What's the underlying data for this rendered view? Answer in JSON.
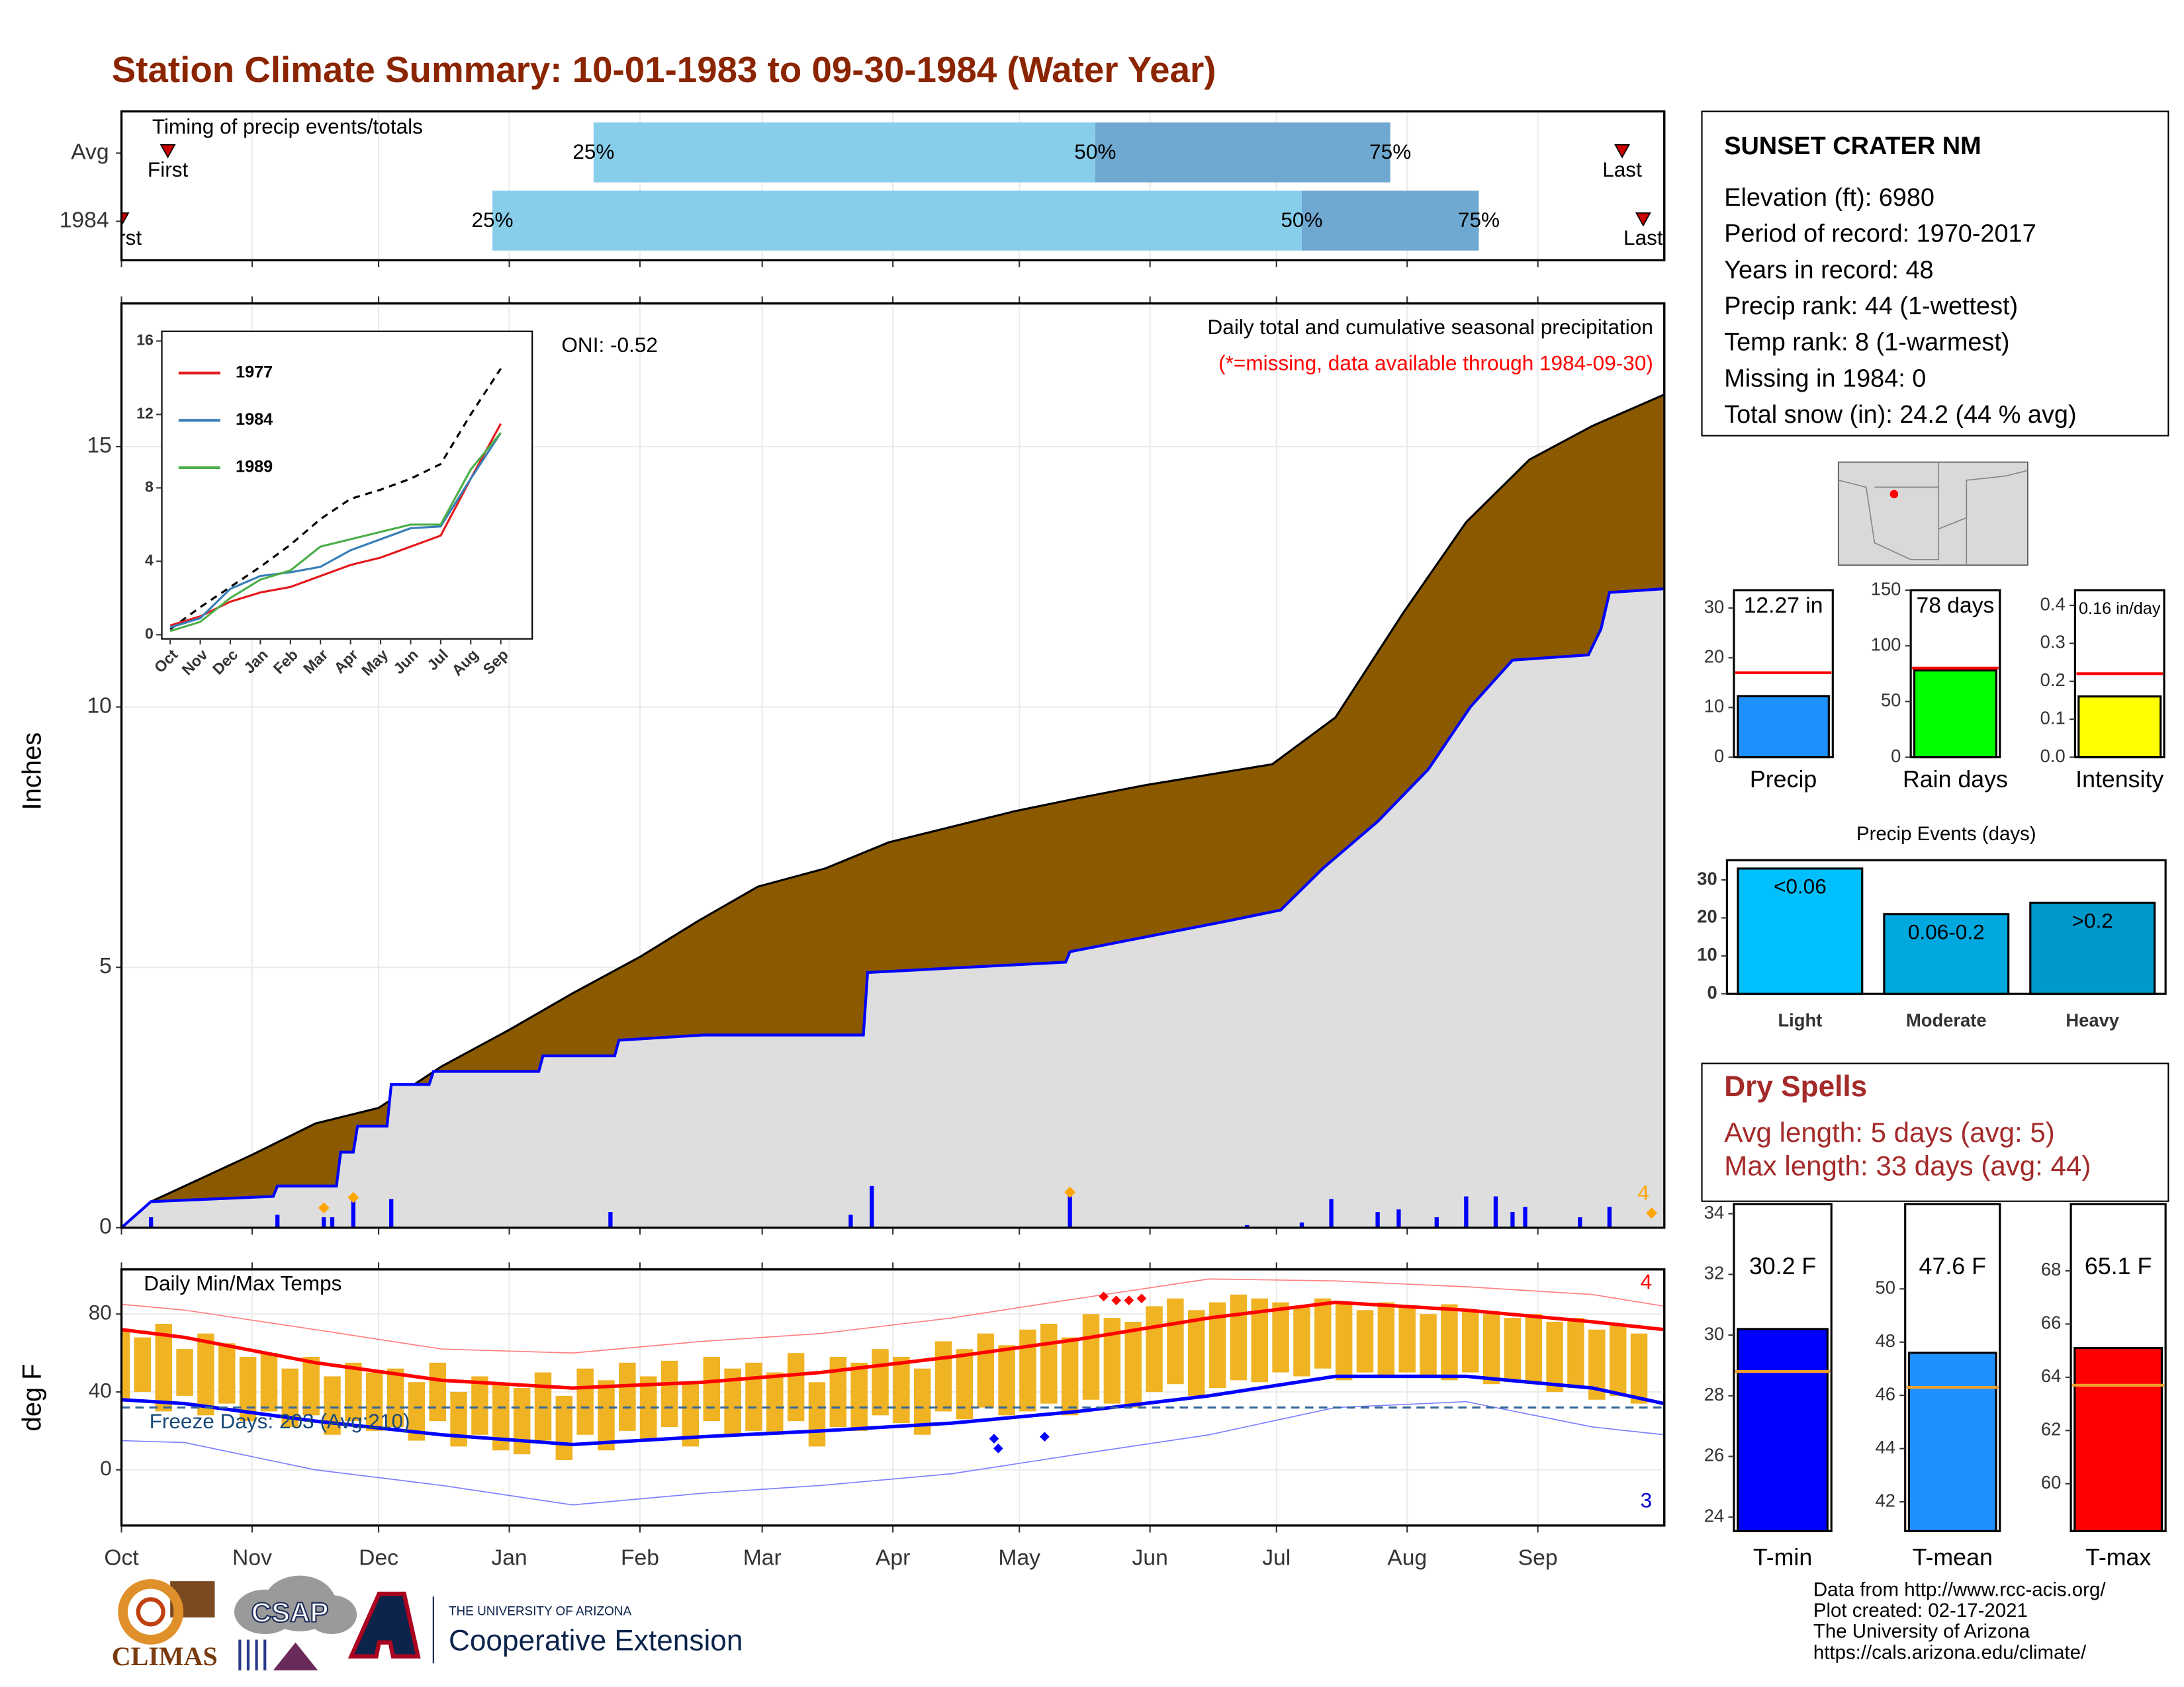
{
  "title": "Station Climate Summary: 10-01-1983 to 09-30-1984 (Water Year)",
  "station": {
    "name": "SUNSET CRATER NM",
    "lines": [
      "Elevation (ft): 6980",
      "Period of record: 1970-2017",
      "Years in record: 48",
      "Precip rank: 44 (1-wettest)",
      "Temp rank: 8 (1-warmest)",
      "Missing in 1984: 0",
      "Total snow (in): 24.2 (44 % avg)"
    ]
  },
  "dry_spells": {
    "title": "Dry Spells",
    "lines": [
      "Avg length: 5 days (avg: 5)",
      "Max length: 33 days (avg: 44)"
    ]
  },
  "footer": [
    "Data from http://www.rcc-acis.org/",
    "Plot created: 02-17-2021",
    "The University of Arizona",
    "https://cals.arizona.edu/climate/"
  ],
  "logos": {
    "climas": "CLIMAS",
    "csap": "CSAP",
    "university": "THE UNIVERSITY OF ARIZONA",
    "extension": "Cooperative Extension"
  },
  "chart_data": [
    {
      "type": "timing",
      "title": "Timing of precip events/totals",
      "xlim": [
        0,
        366
      ],
      "xticks": [
        0,
        31,
        61,
        92,
        123,
        152,
        183,
        213,
        244,
        274,
        305,
        336
      ],
      "marker_labels": {
        "first": "First",
        "last": "Last"
      },
      "colors": [
        "#87ceeb",
        "#6fa8d0"
      ],
      "marker_color": "#cc0000",
      "rows": [
        {
          "name": "Avg",
          "first": 11,
          "q25": 112,
          "q50": 231,
          "q75": 301,
          "last": 356,
          "q25_label": "25%",
          "q50_label": "50%",
          "q75_label": "75%"
        },
        {
          "name": "1984",
          "first": 0,
          "q25": 88,
          "q50": 280,
          "q75": 322,
          "last": 361,
          "q25_label": "25%",
          "q50_label": "50%",
          "q75_label": "75%"
        }
      ]
    },
    {
      "type": "cumulative",
      "title": "Daily total and cumulative seasonal precipitation",
      "subtitle": "(*=missing, data available through 1984-09-30)",
      "annotation": "ONI: -0.52",
      "ylabel": "Inches",
      "xlim": [
        0,
        366
      ],
      "xticks": [
        0,
        31,
        61,
        92,
        123,
        152,
        183,
        213,
        244,
        274,
        305,
        336
      ],
      "ylim": [
        0,
        17.75
      ],
      "yticks": [
        0,
        5,
        10,
        15
      ],
      "grid": true,
      "cumulative_avg": {
        "color": "#8b5a00",
        "x": [
          0,
          7,
          31,
          46,
          61,
          76,
          92,
          107,
          123,
          137,
          151,
          167,
          182,
          197,
          212,
          227,
          243,
          258,
          273,
          288,
          304,
          319,
          334,
          349,
          366
        ],
        "values": [
          0,
          0.5,
          1.4,
          2.0,
          2.3,
          3.1,
          3.8,
          4.5,
          5.2,
          5.9,
          6.55,
          6.9,
          7.4,
          7.7,
          8.0,
          8.25,
          8.5,
          8.7,
          8.9,
          9.8,
          11.8,
          13.55,
          14.75,
          15.4,
          16.0
        ]
      },
      "cumulative_1984": {
        "color": "#0000ff",
        "fill": "#dedede",
        "x": [
          0,
          7,
          36,
          37,
          51,
          52,
          55,
          56,
          63,
          64,
          73,
          74,
          99,
          100,
          117,
          118,
          138,
          176,
          177,
          224,
          225,
          263,
          275,
          285,
          298,
          310,
          320,
          330,
          348,
          351,
          353,
          366
        ],
        "values": [
          0,
          0.5,
          0.6,
          0.8,
          0.8,
          1.45,
          1.45,
          1.95,
          1.95,
          2.75,
          2.75,
          3.0,
          3.0,
          3.3,
          3.3,
          3.6,
          3.7,
          3.7,
          4.9,
          5.1,
          5.3,
          5.9,
          6.1,
          6.9,
          7.8,
          8.8,
          10.0,
          10.9,
          11.0,
          11.5,
          12.2,
          12.27
        ]
      },
      "daily": {
        "color": "#0000ff",
        "x": [
          7,
          37,
          48,
          50,
          55,
          64,
          116,
          173,
          178,
          225,
          267,
          280,
          287,
          298,
          303,
          312,
          319,
          326,
          330,
          333,
          346,
          353
        ],
        "values": [
          0.2,
          0.25,
          0.2,
          0.2,
          0.55,
          0.55,
          0.3,
          0.25,
          0.8,
          0.6,
          0.05,
          0.1,
          0.55,
          0.3,
          0.35,
          0.2,
          0.6,
          0.6,
          0.3,
          0.4,
          0.2,
          0.4
        ]
      },
      "record_daily": {
        "color": "#ffa500",
        "x": [
          48,
          55,
          225,
          363
        ],
        "values": [
          0.38,
          0.58,
          0.68,
          0.28
        ]
      },
      "record_count": 4
    },
    {
      "type": "line",
      "categories": [
        "Oct",
        "Nov",
        "Dec",
        "Jan",
        "Feb",
        "Mar",
        "Apr",
        "May",
        "Jun",
        "Jul",
        "Aug",
        "Sep"
      ],
      "ylim": [
        0,
        16
      ],
      "yticks": [
        0,
        4,
        8,
        12,
        16
      ],
      "average": {
        "color": "#000000",
        "values": [
          0.3,
          1.5,
          2.6,
          3.7,
          4.9,
          6.3,
          7.4,
          7.9,
          8.5,
          9.3,
          12.0,
          14.5
        ]
      },
      "series": [
        {
          "name": "1977",
          "color": "#e41a1c",
          "values": [
            0.5,
            1.0,
            1.8,
            2.3,
            2.6,
            3.2,
            3.8,
            4.2,
            4.8,
            5.4,
            8.5,
            11.5
          ]
        },
        {
          "name": "1984",
          "color": "#377eb8",
          "values": [
            0.4,
            0.9,
            2.5,
            3.2,
            3.4,
            3.7,
            4.6,
            5.2,
            5.8,
            5.9,
            8.5,
            11.0
          ]
        },
        {
          "name": "1989",
          "color": "#4daf4a",
          "values": [
            0.2,
            0.7,
            2.0,
            3.0,
            3.5,
            4.8,
            5.2,
            5.6,
            6.0,
            6.0,
            9.0,
            11.0
          ]
        }
      ]
    },
    {
      "type": "bar",
      "categories": [
        "Precip"
      ],
      "values": [
        12.27
      ],
      "value_labels": [
        "12.27 in"
      ],
      "color": "#1e90ff",
      "reference": 17,
      "reference_color": "#ff0000",
      "ylim": [
        0,
        33.6
      ],
      "yticks": [
        0,
        10,
        20,
        30
      ]
    },
    {
      "type": "bar",
      "categories": [
        "Rain days"
      ],
      "values": [
        78
      ],
      "value_labels": [
        "78 days"
      ],
      "color": "#00ff00",
      "reference": 80,
      "reference_color": "#ff0000",
      "ylim": [
        0,
        150
      ],
      "yticks": [
        0,
        50,
        100,
        150
      ]
    },
    {
      "type": "bar",
      "categories": [
        "Intensity"
      ],
      "values": [
        0.16
      ],
      "value_labels": [
        "0.16 in/day"
      ],
      "color": "#ffff00",
      "reference": 0.22,
      "reference_color": "#ff0000",
      "ylim": [
        0,
        0.44
      ],
      "yticks": [
        {
          "value": 0,
          "label": "0.0"
        },
        {
          "value": 0.1,
          "label": "0.1"
        },
        {
          "value": 0.2,
          "label": "0.2"
        },
        {
          "value": 0.3,
          "label": "0.3"
        },
        {
          "value": 0.4,
          "label": "0.4"
        }
      ]
    },
    {
      "type": "bar",
      "title": "Precip Events (days)",
      "categories": [
        "Light",
        "Moderate",
        "Heavy"
      ],
      "values": [
        33,
        21,
        24
      ],
      "bin_labels": [
        "<0.06",
        "0.06-0.2",
        ">0.2"
      ],
      "colors": [
        "#00bfff",
        "#00a8e0",
        "#0099cc"
      ],
      "ylim": [
        0,
        35.2
      ],
      "yticks": [
        0,
        10,
        20,
        30
      ]
    },
    {
      "type": "temp_range",
      "title": "Daily Min/Max Temps",
      "ylabel": "deg F",
      "xlim": [
        0,
        366
      ],
      "xticks": [
        {
          "value": 0,
          "label": "Oct"
        },
        {
          "value": 31,
          "label": "Nov"
        },
        {
          "value": 61,
          "label": "Dec"
        },
        {
          "value": 92,
          "label": "Jan"
        },
        {
          "value": 123,
          "label": "Feb"
        },
        {
          "value": 152,
          "label": "Mar"
        },
        {
          "value": 183,
          "label": "Apr"
        },
        {
          "value": 213,
          "label": "May"
        },
        {
          "value": 244,
          "label": "Jun"
        },
        {
          "value": 274,
          "label": "Jul"
        },
        {
          "value": 305,
          "label": "Aug"
        },
        {
          "value": 336,
          "label": "Sep"
        }
      ],
      "ylim": [
        -28.6,
        102.9
      ],
      "yticks": [
        0,
        40,
        80
      ],
      "grid": true,
      "daily": {
        "color": "#f0b323",
        "x": [
          0,
          5,
          10,
          15,
          20,
          25,
          30,
          35,
          40,
          45,
          50,
          55,
          60,
          65,
          70,
          75,
          80,
          85,
          90,
          95,
          100,
          105,
          110,
          115,
          120,
          125,
          130,
          135,
          140,
          145,
          150,
          155,
          160,
          165,
          170,
          175,
          180,
          185,
          190,
          195,
          200,
          205,
          210,
          215,
          220,
          225,
          230,
          235,
          240,
          245,
          250,
          255,
          260,
          265,
          270,
          275,
          280,
          285,
          290,
          295,
          300,
          305,
          310,
          315,
          320,
          325,
          330,
          335,
          340,
          345,
          350,
          355,
          360
        ],
        "low": [
          35,
          40,
          30,
          38,
          28,
          34,
          25,
          30,
          22,
          28,
          18,
          25,
          20,
          22,
          15,
          25,
          12,
          18,
          10,
          8,
          15,
          5,
          18,
          10,
          20,
          15,
          22,
          12,
          25,
          18,
          20,
          18,
          25,
          12,
          22,
          20,
          28,
          24,
          18,
          30,
          26,
          32,
          28,
          30,
          34,
          28,
          36,
          34,
          32,
          40,
          44,
          38,
          42,
          46,
          45,
          50,
          48,
          52,
          46,
          50,
          48,
          50,
          48,
          46,
          50,
          44,
          45,
          44,
          40,
          42,
          36,
          38,
          34
        ],
        "high": [
          72,
          68,
          75,
          62,
          70,
          65,
          58,
          60,
          52,
          58,
          48,
          55,
          50,
          52,
          45,
          55,
          40,
          48,
          44,
          42,
          50,
          38,
          52,
          46,
          55,
          48,
          56,
          45,
          58,
          52,
          55,
          50,
          60,
          45,
          58,
          55,
          62,
          58,
          52,
          66,
          62,
          70,
          64,
          72,
          75,
          68,
          80,
          78,
          76,
          84,
          88,
          82,
          86,
          90,
          88,
          86,
          84,
          88,
          85,
          82,
          86,
          84,
          80,
          85,
          82,
          80,
          78,
          80,
          76,
          78,
          72,
          74,
          70
        ]
      },
      "normal_max": {
        "color": "#ff0000",
        "x": [
          0,
          15,
          46,
          76,
          107,
          138,
          166,
          197,
          227,
          258,
          288,
          319,
          349,
          366
        ],
        "values": [
          72,
          68,
          55,
          46,
          42,
          45,
          50,
          58,
          67,
          78,
          86,
          82,
          76,
          72
        ]
      },
      "normal_min": {
        "color": "#0000ff",
        "x": [
          0,
          15,
          46,
          76,
          107,
          138,
          166,
          197,
          227,
          258,
          288,
          319,
          349,
          366
        ],
        "values": [
          36,
          34,
          25,
          18,
          13,
          17,
          20,
          24,
          30,
          38,
          48,
          48,
          42,
          34
        ]
      },
      "record_max": {
        "color": "#ff8080",
        "x": [
          0,
          15,
          46,
          76,
          107,
          138,
          166,
          197,
          227,
          258,
          288,
          319,
          349,
          366
        ],
        "values": [
          85,
          82,
          72,
          62,
          60,
          66,
          70,
          78,
          88,
          98,
          97,
          94,
          90,
          84
        ]
      },
      "record_min": {
        "color": "#8080ff",
        "x": [
          0,
          15,
          46,
          76,
          107,
          138,
          166,
          197,
          227,
          258,
          288,
          319,
          349,
          366
        ],
        "values": [
          15,
          14,
          0,
          -8,
          -18,
          -12,
          -8,
          -2,
          8,
          18,
          32,
          35,
          22,
          18
        ]
      },
      "freeze_line": {
        "value": 32,
        "color": "#336699",
        "label": "Freeze Days: 203 (Avg:210)"
      },
      "record_high_days": {
        "color": "#ff0000",
        "x": [
          233,
          236,
          239,
          242
        ],
        "values": [
          89,
          87,
          87,
          88
        ]
      },
      "record_low_days": {
        "color": "#0000ff",
        "x": [
          207,
          208,
          219
        ],
        "values": [
          16,
          11,
          17
        ]
      },
      "record_high_count": 4,
      "record_low_count": 3
    },
    {
      "type": "bar",
      "categories": [
        "T-min"
      ],
      "values": [
        30.2
      ],
      "value_labels": [
        "30.2 F"
      ],
      "color": "#0000ff",
      "reference": 28.8,
      "reference_color": "#f0a030",
      "ylim": [
        23.54,
        34.32
      ],
      "yticks": [
        24,
        26,
        28,
        30,
        32,
        34
      ]
    },
    {
      "type": "bar",
      "categories": [
        "T-mean"
      ],
      "values": [
        47.6
      ],
      "value_labels": [
        "47.6 F"
      ],
      "color": "#1e90ff",
      "reference": 46.3,
      "reference_color": "#f0a030",
      "ylim": [
        40.9,
        53.19
      ],
      "yticks": [
        42,
        44,
        46,
        48,
        50
      ]
    },
    {
      "type": "bar",
      "categories": [
        "T-max"
      ],
      "values": [
        65.1
      ],
      "value_labels": [
        "65.1 F"
      ],
      "color": "#ff0000",
      "reference": 63.7,
      "reference_color": "#f0a030",
      "ylim": [
        58.22,
        70.51
      ],
      "yticks": [
        60,
        62,
        64,
        66,
        68
      ]
    }
  ]
}
